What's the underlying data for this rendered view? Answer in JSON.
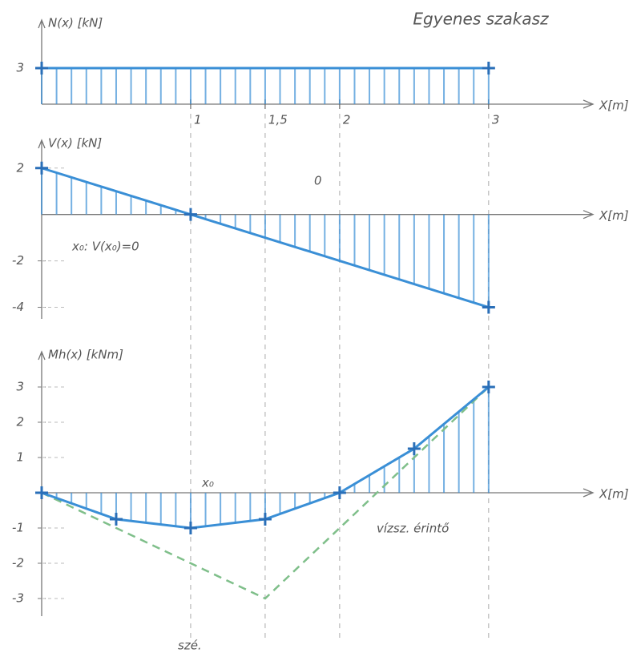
{
  "title": "Egyenes szakasz",
  "chart_data": [
    {
      "type": "area",
      "ylabel": "N(x) [kN]",
      "xlabel": "X[m]",
      "x": [
        0,
        3
      ],
      "values": [
        3,
        3
      ],
      "color": "#3a8fd6",
      "xlim": [
        0,
        3.7
      ],
      "ylim": [
        0,
        7
      ],
      "xticks": [
        1,
        {
          "value": 1.5,
          "label": "1,5"
        },
        2,
        3
      ],
      "yticks": [
        3
      ]
    },
    {
      "type": "area",
      "ylabel": "V(x) [kN]",
      "xlabel": "X[m]",
      "x": [
        0,
        1,
        3
      ],
      "values": [
        2,
        0,
        -4
      ],
      "color": "#3a8fd6",
      "xlim": [
        0,
        3.7
      ],
      "ylim": [
        -4.5,
        3.2
      ],
      "yticks": [
        2,
        -2,
        -4
      ],
      "annotations": [
        "x₀: V(x₀)=0",
        "0"
      ]
    },
    {
      "type": "area",
      "ylabel": "Mh(x) [kNm]",
      "xlabel": "X[m]",
      "x": [
        0,
        0.5,
        1,
        1.5,
        2,
        2.5,
        3
      ],
      "values": [
        0,
        -0.75,
        -1,
        -0.75,
        0,
        1.25,
        3
      ],
      "color": "#3a8fd6",
      "tangent_x": [
        0,
        1.5,
        3
      ],
      "tangent_values": [
        0,
        -3,
        3
      ],
      "tangent_color": "#7fbf8a",
      "xlim": [
        0,
        3.7
      ],
      "ylim": [
        -3.5,
        4
      ],
      "yticks": [
        3,
        2,
        1,
        -1,
        -2,
        -3
      ],
      "annotations": [
        "x₀",
        "vízsz. érintő",
        "szé."
      ]
    }
  ]
}
